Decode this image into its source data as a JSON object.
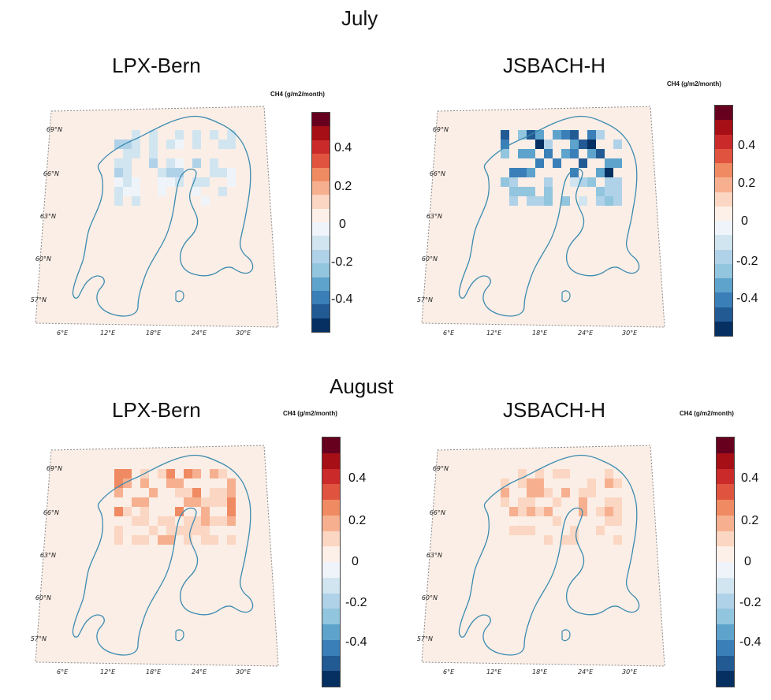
{
  "months": [
    {
      "name": "July",
      "panels": [
        {
          "model": "LPX-Bern",
          "units_label": "CH4 (g/m2/month)",
          "anomaly": {
            "sign": "negative",
            "max_intensity": 0.25
          }
        },
        {
          "model": "JSBACH-H",
          "units_label": "CH4 (g/m2/month)",
          "anomaly": {
            "sign": "negative",
            "max_intensity": 1.0
          }
        }
      ]
    },
    {
      "name": "August",
      "panels": [
        {
          "model": "LPX-Bern",
          "units_label": "CH4 (g/m2/month)",
          "anomaly": {
            "sign": "positive",
            "max_intensity": 0.45
          }
        },
        {
          "model": "JSBACH-H",
          "units_label": "CH4 (g/m2/month)",
          "anomaly": {
            "sign": "positive",
            "max_intensity": 0.3
          }
        }
      ]
    }
  ],
  "colorbar": {
    "ticks": [
      "0.4",
      "0.2",
      "0",
      "-0.2",
      "-0.4"
    ],
    "colors": [
      "#67001f",
      "#a50f15",
      "#cb2a2a",
      "#e0543f",
      "#ef8a62",
      "#f6b090",
      "#fbd6c2",
      "#fdf0e8",
      "#eef4f9",
      "#d1e5f0",
      "#b0d2e8",
      "#92c5de",
      "#5ea3cc",
      "#3a7fb8",
      "#225a94",
      "#053061"
    ]
  },
  "latitude_labels": [
    "69°N",
    "66°N",
    "63°N",
    "60°N",
    "57°N"
  ],
  "longitude_labels": [
    "6°E",
    "12°E",
    "18°E",
    "24°E",
    "30°E"
  ],
  "colors": {
    "land": "#fbeee6",
    "coast": "#3c8bb0",
    "frame": "#888888"
  }
}
